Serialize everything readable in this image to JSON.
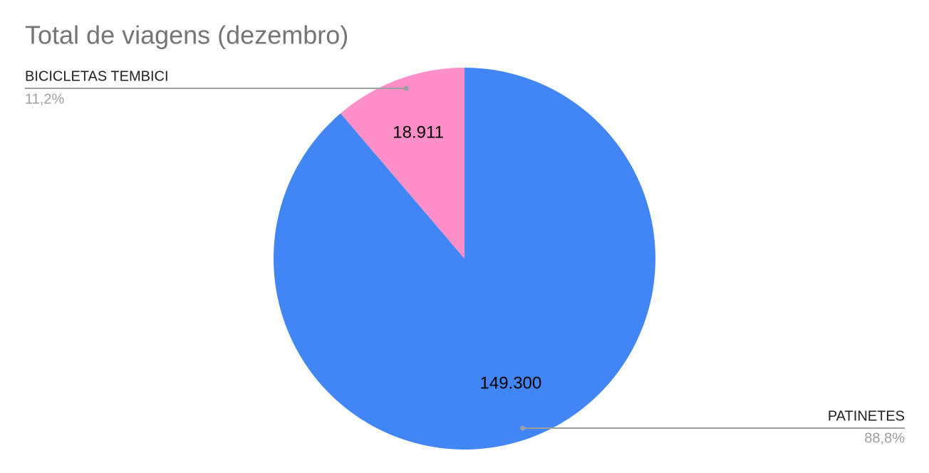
{
  "chart_data": {
    "type": "pie",
    "title": "Total de viagens (dezembro)",
    "categories": [
      "PATINETES",
      "BICICLETAS TEMBICI"
    ],
    "values": [
      149300,
      18911
    ],
    "value_labels": [
      "149.300",
      "18.911"
    ],
    "percent_labels": [
      "88,8%",
      "11,2%"
    ],
    "colors": [
      "#4285f4",
      "#ff8fc8"
    ]
  }
}
